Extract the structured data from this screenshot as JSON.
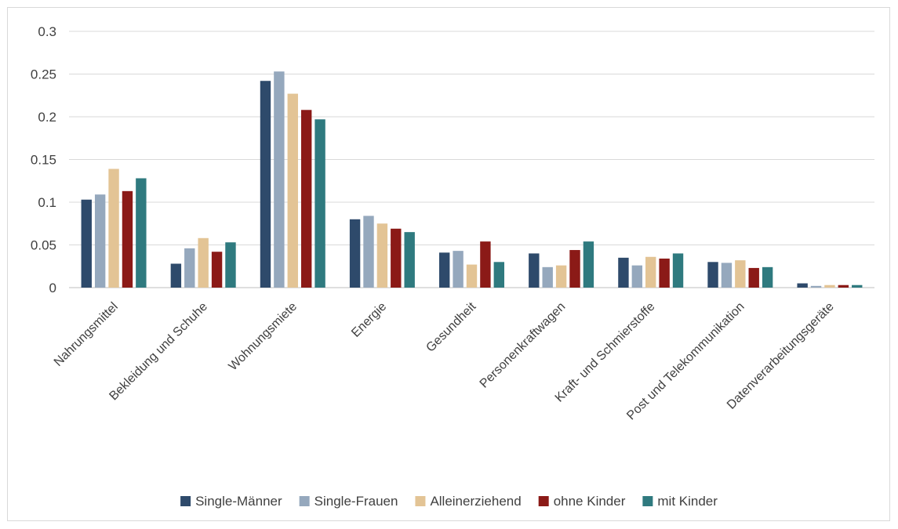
{
  "chart_data": {
    "type": "bar",
    "title": "",
    "xlabel": "",
    "ylabel": "",
    "ylim": [
      0,
      0.3
    ],
    "y_ticks": [
      "0",
      "0.05",
      "0.1",
      "0.15",
      "0.2",
      "0.25",
      "0.3"
    ],
    "grid": true,
    "legend_position": "bottom",
    "categories": [
      "Nahrungsmittel",
      "Bekleidung und Schuhe",
      "Wohnungsmiete",
      "Energie",
      "Gesundheit",
      "Personenkraftwagen",
      "Kraft- und Schmierstoffe",
      "Post und Telekommunikation",
      "Datenverarbeitungsgeräte"
    ],
    "series": [
      {
        "name": "Single-Männer",
        "color": "#2e4a6b",
        "values": [
          0.103,
          0.028,
          0.242,
          0.08,
          0.041,
          0.04,
          0.035,
          0.03,
          0.005
        ]
      },
      {
        "name": "Single-Frauen",
        "color": "#95a8bd",
        "values": [
          0.109,
          0.046,
          0.253,
          0.084,
          0.043,
          0.024,
          0.026,
          0.029,
          0.002
        ]
      },
      {
        "name": "Alleinerziehend",
        "color": "#e3c495",
        "values": [
          0.139,
          0.058,
          0.227,
          0.075,
          0.027,
          0.026,
          0.036,
          0.032,
          0.003
        ]
      },
      {
        "name": "ohne Kinder",
        "color": "#8b1a17",
        "values": [
          0.113,
          0.042,
          0.208,
          0.069,
          0.054,
          0.044,
          0.034,
          0.023,
          0.003
        ]
      },
      {
        "name": "mit Kinder",
        "color": "#2f7a7f",
        "values": [
          0.128,
          0.053,
          0.197,
          0.065,
          0.03,
          0.054,
          0.04,
          0.024,
          0.003
        ]
      }
    ]
  },
  "colors": {
    "grid": "#d9d9d9",
    "axis": "#bfbfbf",
    "text": "#404040"
  }
}
